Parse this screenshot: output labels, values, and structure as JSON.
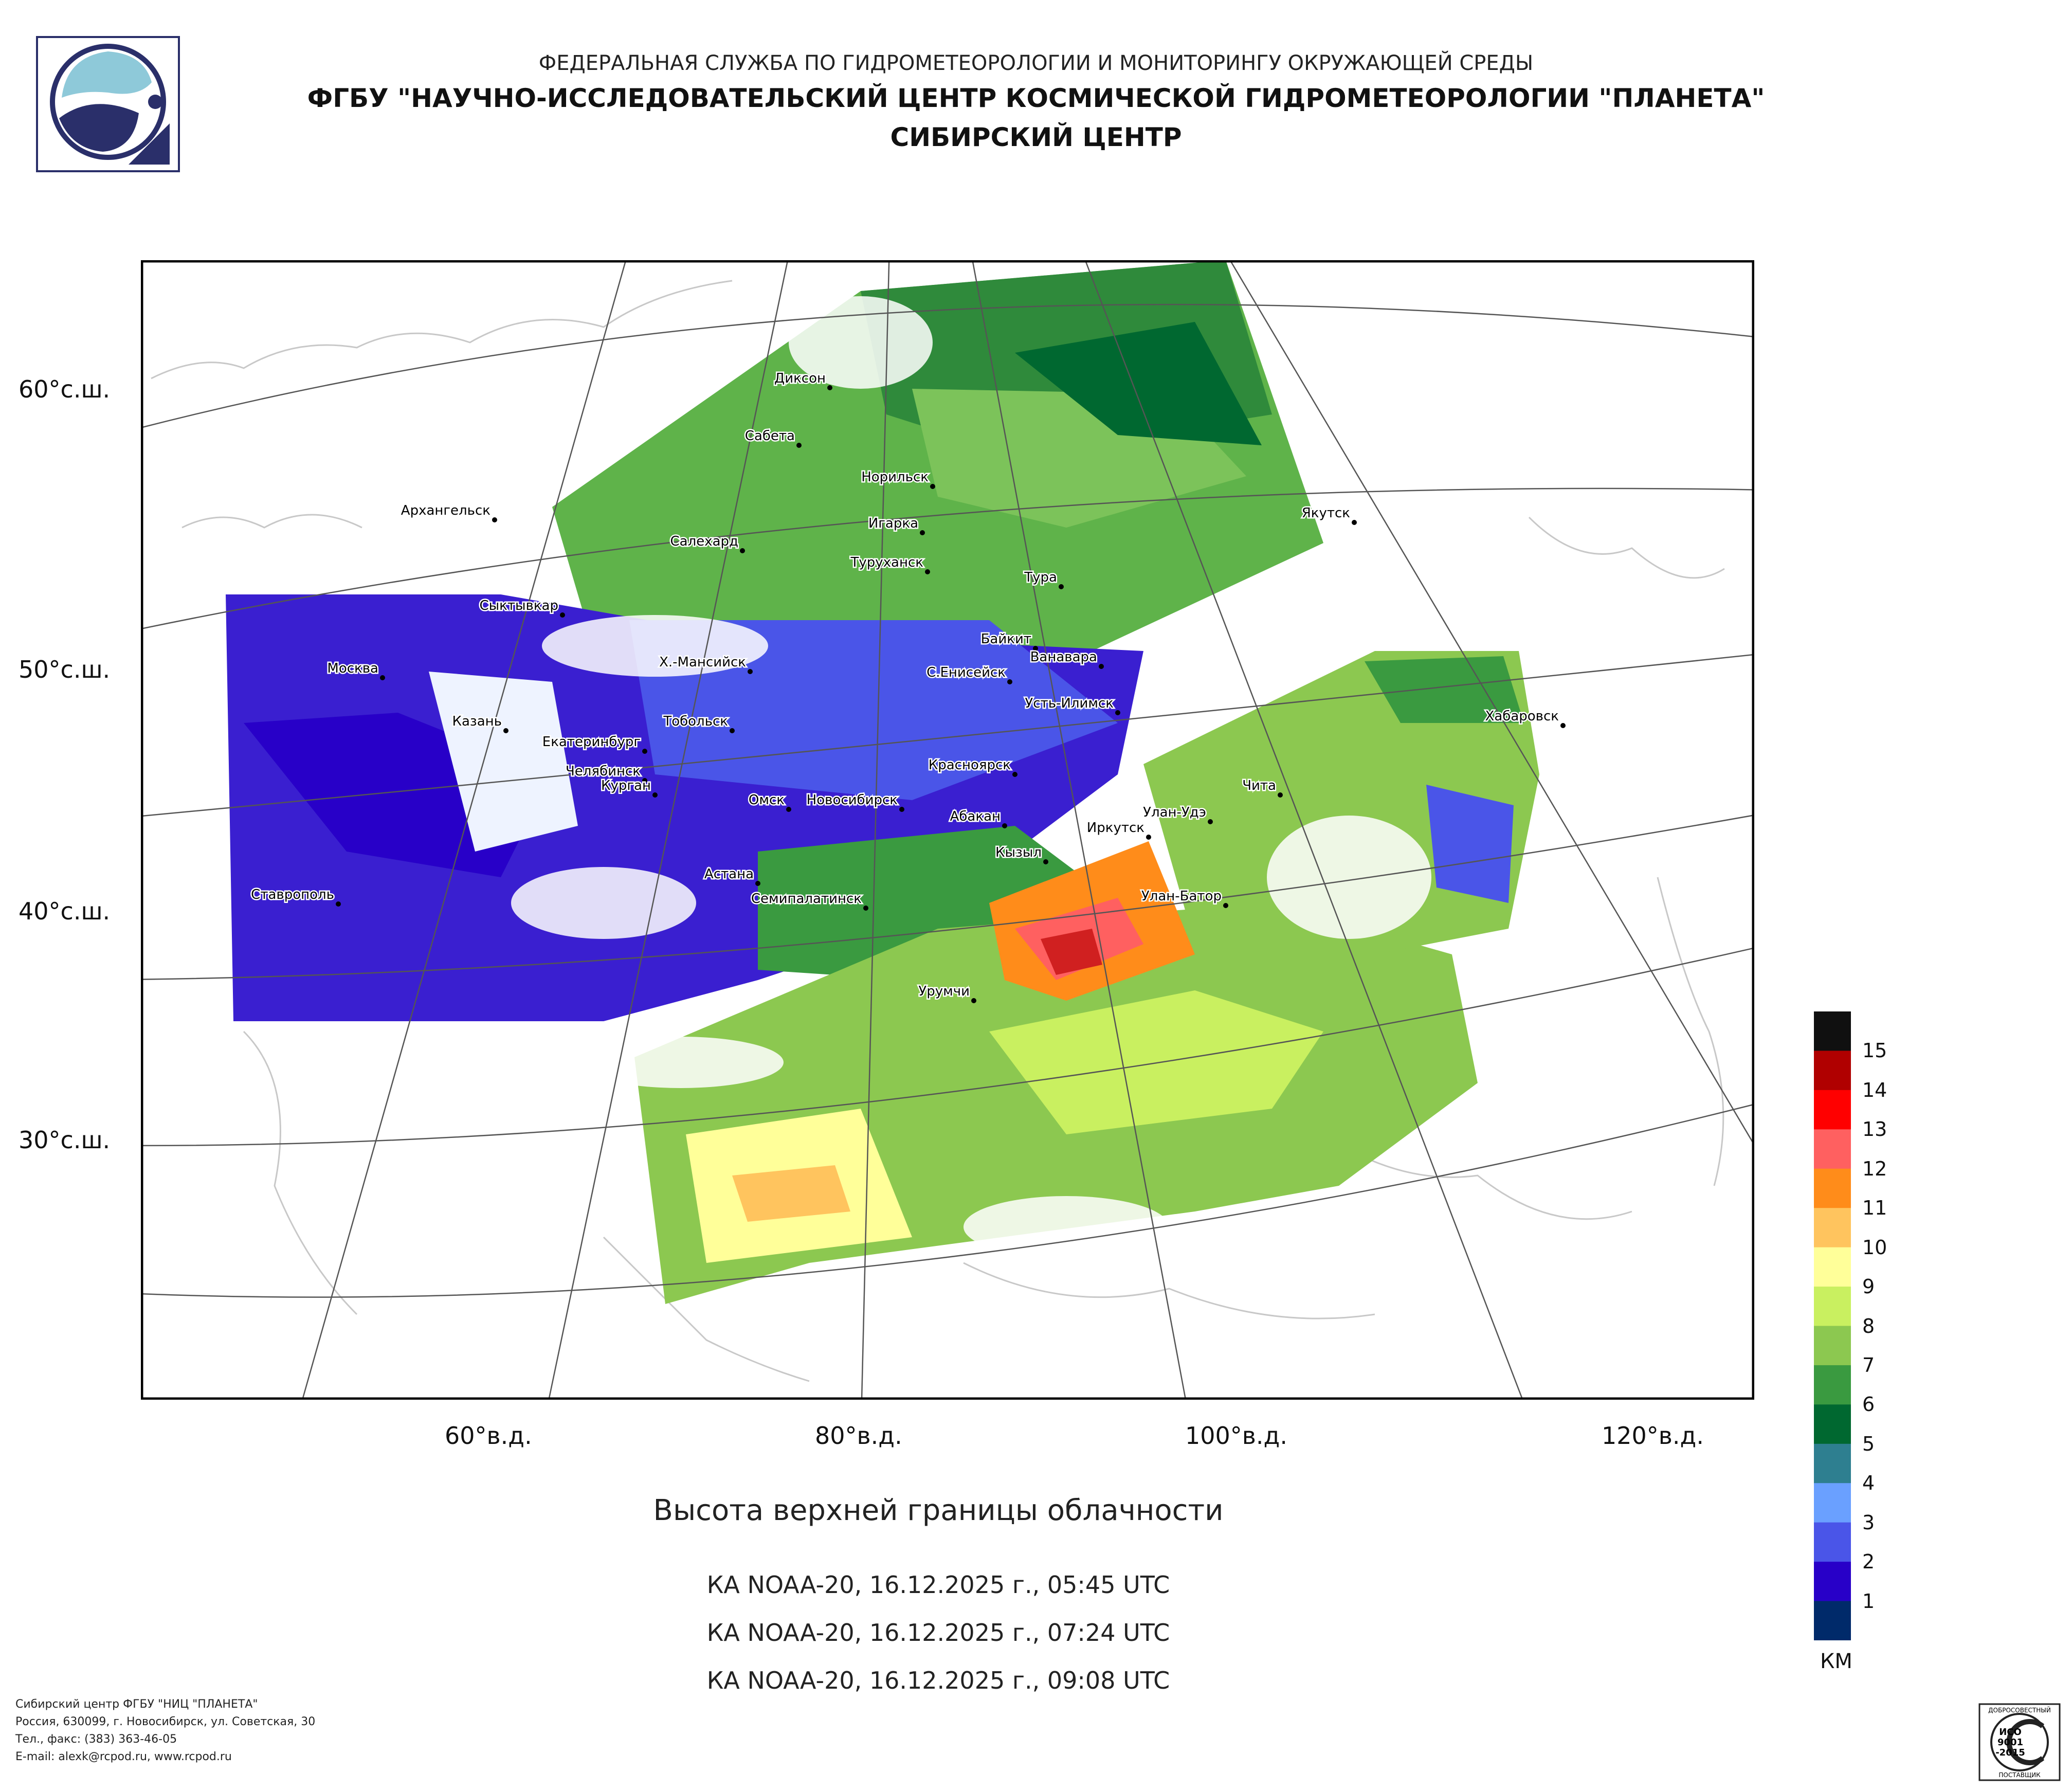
{
  "header": {
    "line1": "ФЕДЕРАЛЬНАЯ СЛУЖБА ПО ГИДРОМЕТЕОРОЛОГИИ И МОНИТОРИНГУ ОКРУЖАЮЩЕЙ СРЕДЫ",
    "line2": "ФГБУ \"НАУЧНО-ИССЛЕДОВАТЕЛЬСКИЙ ЦЕНТР КОСМИЧЕСКОЙ ГИДРОМЕТЕОРОЛОГИИ \"ПЛАНЕТА\"",
    "line3": "СИБИРСКИЙ ЦЕНТР"
  },
  "axes": {
    "lat_labels": [
      "60°с.ш.",
      "50°с.ш.",
      "40°с.ш.",
      "30°с.ш."
    ],
    "lon_labels": [
      "60°в.д.",
      "80°в.д.",
      "100°в.д.",
      "120°в.д."
    ]
  },
  "cities": [
    "Диксон",
    "Сабета",
    "Норильск",
    "Игарка",
    "Архангельск",
    "Салехард",
    "Туруханск",
    "Тура",
    "Якутск",
    "Сыктывкар",
    "Байкит",
    "Ванавара",
    "Москва",
    "Х.-Мансийск",
    "С.Енисейск",
    "Усть-Илимск",
    "Казань",
    "Тобольск",
    "Хабаровск",
    "Екатеринбург",
    "Красноярск",
    "Челябинск",
    "Чита",
    "Курган",
    "Омск",
    "Новосибирск",
    "Улан-Удэ",
    "Абакан",
    "Иркутск",
    "Кызыл",
    "Астана",
    "Ставрополь",
    "Улан-Батор",
    "Семипалатинск",
    "Урумчи"
  ],
  "title": "Высота верхней границы облачности",
  "captions": [
    "КА NOAA-20, 16.12.2025 г., 05:45 UTC",
    "КА NOAA-20, 16.12.2025 г., 07:24 UTC",
    "КА NOAA-20, 16.12.2025 г., 09:08 UTC"
  ],
  "legend": {
    "unit": "КМ",
    "labels": [
      "15",
      "14",
      "13",
      "12",
      "11",
      "10",
      "9",
      "8",
      "7",
      "6",
      "5",
      "4",
      "3",
      "2",
      "1"
    ],
    "colors": [
      "#101010",
      "#b00000",
      "#ff0000",
      "#ff6060",
      "#ff8c1a",
      "#ffc45e",
      "#ffff99",
      "#c9f060",
      "#8cc850",
      "#3a9a40",
      "#006830",
      "#2e7f90",
      "#6aa0ff",
      "#4a55e8",
      "#2800c8",
      "#002a6a"
    ]
  },
  "footer": [
    "Сибирский центр ФГБУ \"НИЦ \"ПЛАНЕТА\"",
    "Россия, 630099, г. Новосибирск, ул. Советская, 30",
    "Тел., факс: (383) 363-46-05",
    "E-mail: alexk@rcpod.ru, www.rcpod.ru"
  ],
  "cert": {
    "top": "ДОБРОСОВЕСТНЫЙ",
    "l1": "ИСО",
    "l2": "9001",
    "l3": "-2015",
    "bottom": "ПОСТАВЩИК"
  }
}
